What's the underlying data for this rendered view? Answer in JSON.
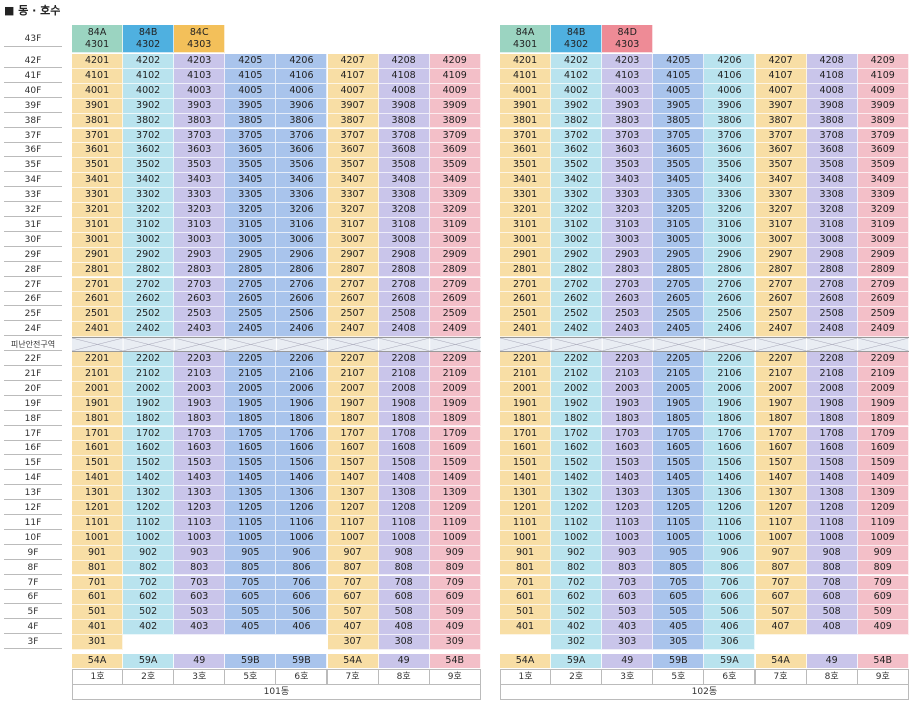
{
  "page_title": "■ 동 · 호수",
  "colors": {
    "84A": "#f8dea5",
    "84B": "#b9e3ee",
    "84C": "#c9c5ea",
    "84D": "#f3bfc8",
    "top_84A": "#9bd4c1",
    "top_84B": "#4fb0e0",
    "top_84C": "#f3c05a",
    "top_84D": "#ee8b96",
    "type_54A": "#f8dea5",
    "type_59A": "#b9e3ee",
    "type_49": "#c9c5ea",
    "type_59B": "#a9c4ec",
    "type_54B": "#f3bfc8",
    "refuge_bg": "#e9edf3"
  },
  "floor_labels": [
    "43F",
    "42F",
    "41F",
    "40F",
    "39F",
    "38F",
    "37F",
    "36F",
    "35F",
    "34F",
    "33F",
    "32F",
    "31F",
    "30F",
    "29F",
    "28F",
    "27F",
    "26F",
    "25F",
    "24F",
    "피난안전구역",
    "22F",
    "21F",
    "20F",
    "19F",
    "18F",
    "17F",
    "16F",
    "15F",
    "14F",
    "13F",
    "12F",
    "11F",
    "10F",
    "9F",
    "8F",
    "7F",
    "6F",
    "5F",
    "4F",
    "3F"
  ],
  "buildings": [
    {
      "name": "101동",
      "units": [
        {
          "ho": "1호",
          "type": "54A",
          "color_key": "type_54A"
        },
        {
          "ho": "2호",
          "type": "59A",
          "color_key": "type_59A"
        },
        {
          "ho": "3호",
          "type": "49",
          "color_key": "type_49"
        },
        {
          "ho": "5호",
          "type": "59B",
          "color_key": "type_59B"
        },
        {
          "ho": "6호",
          "type": "59B",
          "color_key": "type_59B"
        },
        {
          "ho": "7호",
          "type": "54A",
          "color_key": "type_54A"
        },
        {
          "ho": "8호",
          "type": "49",
          "color_key": "type_49"
        },
        {
          "ho": "9호",
          "type": "54B",
          "color_key": "type_54B"
        }
      ],
      "penthouse": [
        {
          "type": "84A",
          "unit": "4301",
          "color_key": "top_84A"
        },
        {
          "type": "84B",
          "unit": "4302",
          "color_key": "top_84B"
        },
        {
          "type": "84C",
          "unit": "4303",
          "color_key": "top_84C"
        }
      ],
      "unit_suffixes": [
        "01",
        "02",
        "03",
        "05",
        "06",
        "07",
        "08",
        "09"
      ],
      "lowest_floor": {
        "3": [
          "301",
          "",
          "",
          "",
          "",
          "307",
          "308",
          "309"
        ]
      }
    },
    {
      "name": "102동",
      "units": [
        {
          "ho": "1호",
          "type": "54A",
          "color_key": "type_54A"
        },
        {
          "ho": "2호",
          "type": "59A",
          "color_key": "type_59A"
        },
        {
          "ho": "3호",
          "type": "49",
          "color_key": "type_49"
        },
        {
          "ho": "5호",
          "type": "59B",
          "color_key": "type_59B"
        },
        {
          "ho": "6호",
          "type": "59A",
          "color_key": "type_59A"
        },
        {
          "ho": "7호",
          "type": "54A",
          "color_key": "type_54A"
        },
        {
          "ho": "8호",
          "type": "49",
          "color_key": "type_49"
        },
        {
          "ho": "9호",
          "type": "54B",
          "color_key": "type_54B"
        }
      ],
      "penthouse": [
        {
          "type": "84A",
          "unit": "4301",
          "color_key": "top_84A"
        },
        {
          "type": "84B",
          "unit": "4302",
          "color_key": "top_84B"
        },
        {
          "type": "84D",
          "unit": "4303",
          "color_key": "top_84D"
        }
      ],
      "unit_suffixes": [
        "01",
        "02",
        "03",
        "05",
        "06",
        "07",
        "08",
        "09"
      ],
      "lowest_floor": {
        "3": [
          "",
          "302",
          "303",
          "305",
          "306",
          "",
          "",
          ""
        ]
      }
    }
  ],
  "floors_with_units": [
    42,
    41,
    40,
    39,
    38,
    37,
    36,
    35,
    34,
    33,
    32,
    31,
    30,
    29,
    28,
    27,
    26,
    25,
    24,
    22,
    21,
    20,
    19,
    18,
    17,
    16,
    15,
    14,
    13,
    12,
    11,
    10,
    9,
    8,
    7,
    6,
    5,
    4
  ]
}
